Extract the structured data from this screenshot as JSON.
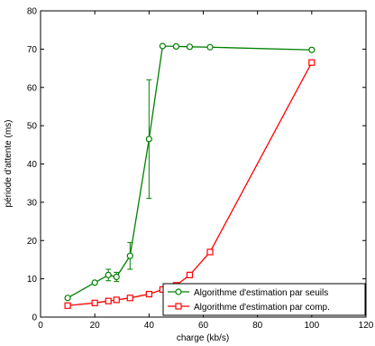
{
  "chart_data": {
    "type": "line",
    "title": "",
    "xlabel": "charge (kb/s)",
    "ylabel": "période d'attente (ms)",
    "xlim": [
      0,
      120
    ],
    "ylim": [
      0,
      80
    ],
    "xticks": [
      0,
      20,
      40,
      60,
      80,
      100,
      120
    ],
    "yticks": [
      0,
      10,
      20,
      30,
      40,
      50,
      60,
      70,
      80
    ],
    "grid": false,
    "legend_position": "bottom-right",
    "series": [
      {
        "name": "Algorithme d'estimation par seuils",
        "color": "#008000",
        "marker": "circle",
        "points": [
          {
            "x": 10,
            "y": 5
          },
          {
            "x": 20,
            "y": 9
          },
          {
            "x": 25,
            "y": 11,
            "err": 1.5
          },
          {
            "x": 28,
            "y": 10.5,
            "err": 1.2
          },
          {
            "x": 33,
            "y": 16,
            "err": 3.5
          },
          {
            "x": 40,
            "y": 46.5,
            "err": 15.5
          },
          {
            "x": 45,
            "y": 70.8
          },
          {
            "x": 50,
            "y": 70.7
          },
          {
            "x": 55,
            "y": 70.6
          },
          {
            "x": 62.5,
            "y": 70.5
          },
          {
            "x": 100,
            "y": 69.8
          }
        ]
      },
      {
        "name": "Algorithme d'estimation par comp.",
        "color": "#ff0000",
        "marker": "square",
        "points": [
          {
            "x": 10,
            "y": 3
          },
          {
            "x": 20,
            "y": 3.7
          },
          {
            "x": 25,
            "y": 4.2
          },
          {
            "x": 28,
            "y": 4.5
          },
          {
            "x": 33,
            "y": 5
          },
          {
            "x": 40,
            "y": 6
          },
          {
            "x": 45,
            "y": 7.2
          },
          {
            "x": 50,
            "y": 8.3
          },
          {
            "x": 55,
            "y": 11
          },
          {
            "x": 62.5,
            "y": 17
          },
          {
            "x": 100,
            "y": 66.5
          }
        ]
      }
    ]
  }
}
